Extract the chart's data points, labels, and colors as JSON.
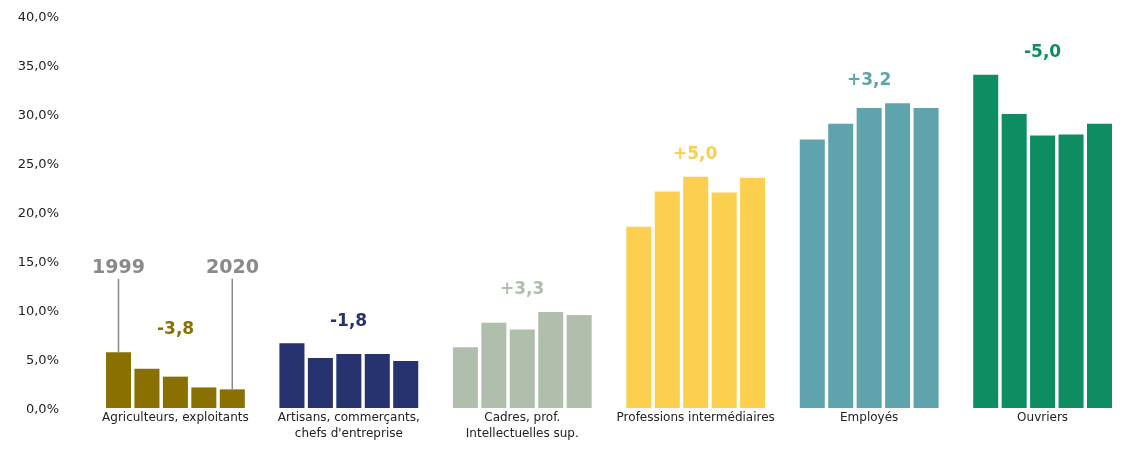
{
  "chart_data": {
    "type": "bar",
    "categories": [
      "Agriculteurs, exploitants",
      "Artisans, commerçants, chefs d'entreprise",
      "Cadres, prof. Intellectuelles sup.",
      "Professions intermédiaires",
      "Employés",
      "Ouvriers"
    ],
    "series": [
      {
        "colors": [
          "#8a7000",
          "#26336e",
          "#b0bfac",
          "#fccf4f",
          "#5fa3ad",
          "#0e8c62"
        ],
        "values": [
          5.7,
          6.6,
          6.2,
          18.5,
          27.4,
          34.0
        ]
      },
      {
        "colors": [
          "#8a7000",
          "#26336e",
          "#b0bfac",
          "#fccf4f",
          "#5fa3ad",
          "#0e8c62"
        ],
        "values": [
          4.0,
          5.1,
          8.7,
          22.1,
          29.0,
          30.0
        ]
      },
      {
        "colors": [
          "#8a7000",
          "#26336e",
          "#b0bfac",
          "#fccf4f",
          "#5fa3ad",
          "#0e8c62"
        ],
        "values": [
          3.2,
          5.5,
          8.0,
          23.6,
          30.6,
          27.8
        ]
      },
      {
        "colors": [
          "#8a7000",
          "#26336e",
          "#b0bfac",
          "#fccf4f",
          "#5fa3ad",
          "#0e8c62"
        ],
        "values": [
          2.1,
          5.5,
          9.8,
          22.0,
          31.1,
          27.9
        ]
      },
      {
        "colors": [
          "#8a7000",
          "#26336e",
          "#b0bfac",
          "#fccf4f",
          "#5fa3ad",
          "#0e8c62"
        ],
        "values": [
          1.9,
          4.8,
          9.5,
          23.5,
          30.6,
          29.0
        ]
      }
    ],
    "ylim": [
      0,
      40
    ],
    "yticks": [
      {
        "value": 0,
        "label": "0,0%"
      },
      {
        "value": 5,
        "label": "5,0%"
      },
      {
        "value": 10,
        "label": "10,0%"
      },
      {
        "value": 15,
        "label": "15,0%"
      },
      {
        "value": 20,
        "label": "20,0%"
      },
      {
        "value": 25,
        "label": "25,0%"
      },
      {
        "value": 30,
        "label": "30,0%"
      },
      {
        "value": 35,
        "label": "35,0%"
      },
      {
        "value": 40,
        "label": "40,0%"
      }
    ],
    "grid": false,
    "annotations": [
      {
        "text": "1999",
        "y": 5.7
      },
      {
        "text": "2020",
        "y": 1.9
      },
      "-3,8",
      "-1,8",
      "+3,3",
      "+5,0",
      "+3,2",
      "-5,0"
    ]
  }
}
